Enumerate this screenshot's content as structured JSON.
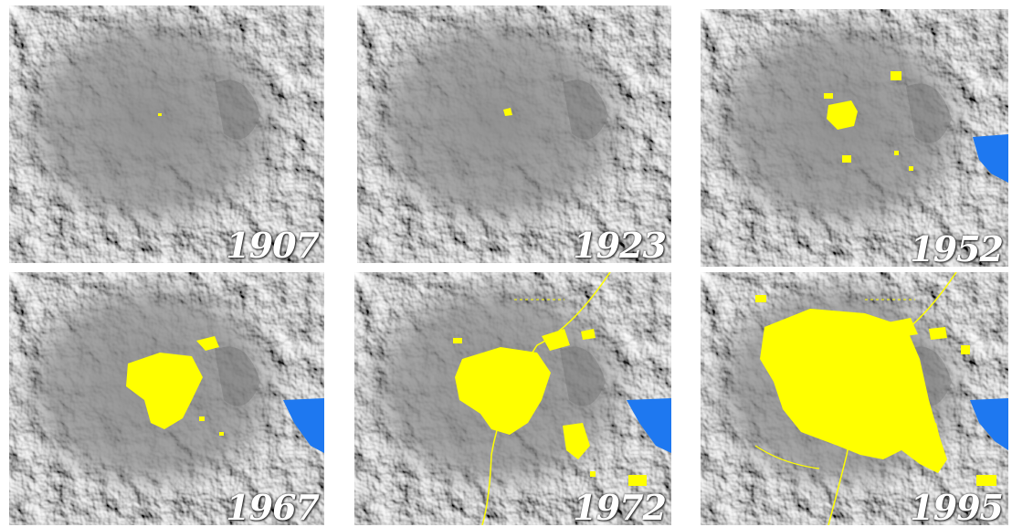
{
  "panels": [
    {
      "year": "1907",
      "urban_extent": "trace"
    },
    {
      "year": "1923",
      "urban_extent": "small"
    },
    {
      "year": "1952",
      "urban_extent": "moderate",
      "lake_visible": true
    },
    {
      "year": "1967",
      "urban_extent": "expanded",
      "lake_visible": true
    },
    {
      "year": "1972",
      "urban_extent": "large",
      "lake_visible": true
    },
    {
      "year": "1995",
      "urban_extent": "extensive",
      "lake_visible": true
    }
  ],
  "colors": {
    "urban": "#ffff00",
    "lake": "#1e78f0",
    "terrain": "#8a8a8a"
  }
}
